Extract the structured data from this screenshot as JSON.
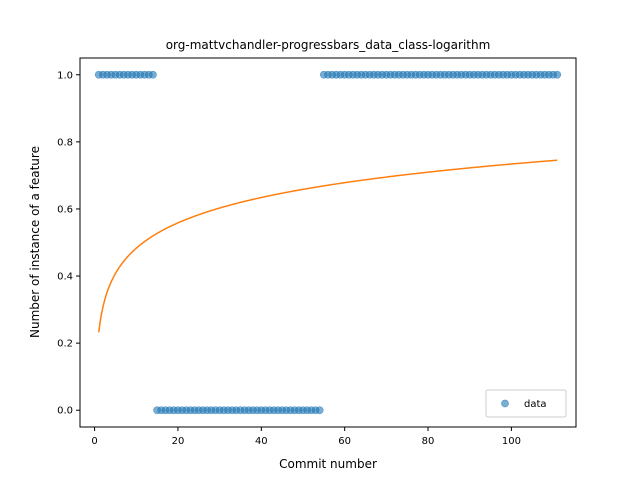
{
  "chart_data": {
    "type": "scatter",
    "title": "org-mattvchandler-progressbars_data_class-logarithm",
    "xlabel": "Commit number",
    "ylabel": "Number of instance of a feature",
    "xlim": [
      -3.5,
      115.5
    ],
    "ylim": [
      -0.05,
      1.05
    ],
    "xticks": [
      0,
      20,
      40,
      60,
      80,
      100
    ],
    "yticks": [
      0.0,
      0.2,
      0.4,
      0.6,
      0.8,
      1.0
    ],
    "xtick_labels": [
      "0",
      "20",
      "40",
      "60",
      "80",
      "100"
    ],
    "ytick_labels": [
      "0.0",
      "0.2",
      "0.4",
      "0.6",
      "0.8",
      "1.0"
    ],
    "grid": false,
    "legend": {
      "position": "lower right",
      "entries": [
        "data"
      ]
    },
    "series": [
      {
        "name": "data",
        "kind": "scatter",
        "color": "#1f77b4",
        "segments": [
          {
            "x_start": 1,
            "x_end": 14,
            "y": 1
          },
          {
            "x_start": 15,
            "x_end": 54,
            "y": 0
          },
          {
            "x_start": 55,
            "x_end": 111,
            "y": 1
          }
        ]
      },
      {
        "kind": "line",
        "color": "#ff7f0e",
        "function": "a + b*ln(x)",
        "coefficients": {
          "a": 0.232,
          "b": 0.109
        },
        "x_range": [
          1,
          111
        ]
      }
    ]
  }
}
